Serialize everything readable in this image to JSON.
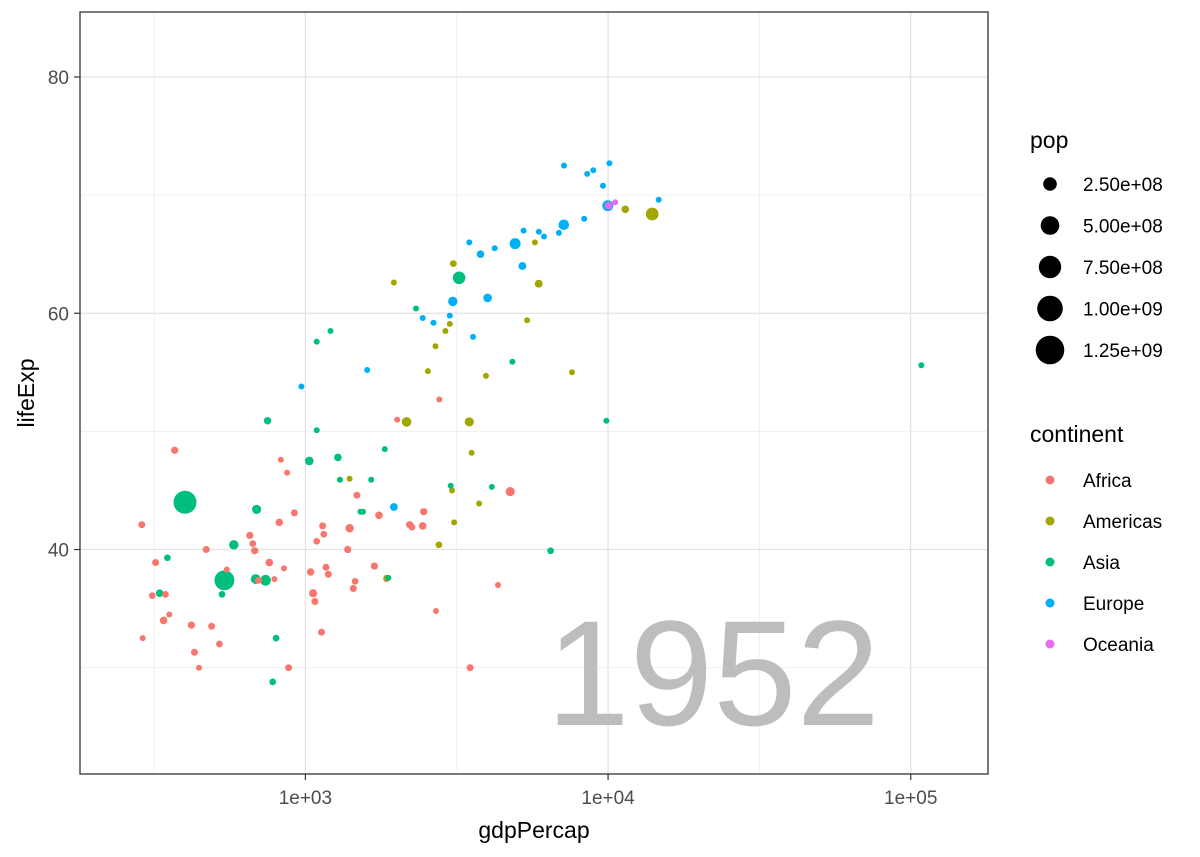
{
  "chart_data": {
    "type": "scatter",
    "xlabel": "gdpPercap",
    "ylabel": "lifeExp",
    "x_scale": "log10",
    "xlim": [
      180,
      180000
    ],
    "ylim": [
      21,
      85.5
    ],
    "x_ticks": [
      {
        "value": 1000,
        "label": "1e+03"
      },
      {
        "value": 10000,
        "label": "1e+04"
      },
      {
        "value": 100000,
        "label": "1e+05"
      }
    ],
    "x_minor_ticks": [
      316,
      3162,
      31623
    ],
    "y_ticks": [
      {
        "value": 40,
        "label": "40"
      },
      {
        "value": 60,
        "label": "60"
      },
      {
        "value": 80,
        "label": "80"
      }
    ],
    "y_minor_ticks": [
      30,
      50,
      70
    ],
    "grid": true,
    "annotation": "1952",
    "legend_position": "right",
    "size_legend": {
      "title": "pop",
      "entries": [
        {
          "value": 250000000,
          "label": "2.50e+08"
        },
        {
          "value": 500000000,
          "label": "5.00e+08"
        },
        {
          "value": 750000000,
          "label": "7.50e+08"
        },
        {
          "value": 1000000000,
          "label": "1.00e+09"
        },
        {
          "value": 1250000000,
          "label": "1.25e+09"
        }
      ]
    },
    "color_legend": {
      "title": "continent",
      "entries": [
        {
          "name": "Africa",
          "color": "#F8766D"
        },
        {
          "name": "Americas",
          "color": "#A3A500"
        },
        {
          "name": "Asia",
          "color": "#00BF7D"
        },
        {
          "name": "Europe",
          "color": "#00B0F6"
        },
        {
          "name": "Oceania",
          "color": "#E76BF3"
        }
      ]
    },
    "series": [
      {
        "name": "Africa",
        "color": "#F8766D",
        "points": [
          {
            "x": 288,
            "y": 42.1,
            "pop": 5000000
          },
          {
            "x": 290,
            "y": 32.5,
            "pop": 3000000
          },
          {
            "x": 312,
            "y": 36.1,
            "pop": 4000000
          },
          {
            "x": 320,
            "y": 38.9,
            "pop": 5000000
          },
          {
            "x": 340,
            "y": 34.0,
            "pop": 8000000
          },
          {
            "x": 345,
            "y": 36.2,
            "pop": 4000000
          },
          {
            "x": 355,
            "y": 34.5,
            "pop": 3000000
          },
          {
            "x": 370,
            "y": 48.4,
            "pop": 6000000
          },
          {
            "x": 420,
            "y": 33.6,
            "pop": 6000000
          },
          {
            "x": 430,
            "y": 31.3,
            "pop": 5000000
          },
          {
            "x": 445,
            "y": 30.0,
            "pop": 3000000
          },
          {
            "x": 470,
            "y": 40.0,
            "pop": 5000000
          },
          {
            "x": 490,
            "y": 33.5,
            "pop": 5000000
          },
          {
            "x": 520,
            "y": 32.0,
            "pop": 4000000
          },
          {
            "x": 550,
            "y": 38.3,
            "pop": 3000000
          },
          {
            "x": 655,
            "y": 41.2,
            "pop": 6000000
          },
          {
            "x": 670,
            "y": 40.5,
            "pop": 4000000
          },
          {
            "x": 680,
            "y": 39.9,
            "pop": 6000000
          },
          {
            "x": 700,
            "y": 37.4,
            "pop": 5000000
          },
          {
            "x": 760,
            "y": 38.9,
            "pop": 8000000
          },
          {
            "x": 790,
            "y": 37.5,
            "pop": 3000000
          },
          {
            "x": 820,
            "y": 42.3,
            "pop": 7000000
          },
          {
            "x": 830,
            "y": 47.6,
            "pop": 3000000
          },
          {
            "x": 850,
            "y": 38.4,
            "pop": 3000000
          },
          {
            "x": 870,
            "y": 46.5,
            "pop": 3000000
          },
          {
            "x": 880,
            "y": 30.0,
            "pop": 5000000
          },
          {
            "x": 920,
            "y": 43.1,
            "pop": 5000000
          },
          {
            "x": 1040,
            "y": 38.1,
            "pop": 7000000
          },
          {
            "x": 1060,
            "y": 36.3,
            "pop": 12000000
          },
          {
            "x": 1075,
            "y": 35.6,
            "pop": 5000000
          },
          {
            "x": 1090,
            "y": 40.7,
            "pop": 4000000
          },
          {
            "x": 1130,
            "y": 33.0,
            "pop": 5000000
          },
          {
            "x": 1140,
            "y": 42.0,
            "pop": 5000000
          },
          {
            "x": 1150,
            "y": 41.3,
            "pop": 4000000
          },
          {
            "x": 1170,
            "y": 38.5,
            "pop": 5000000
          },
          {
            "x": 1190,
            "y": 37.9,
            "pop": 5000000
          },
          {
            "x": 1380,
            "y": 40.0,
            "pop": 6000000
          },
          {
            "x": 1400,
            "y": 41.8,
            "pop": 15000000
          },
          {
            "x": 1440,
            "y": 36.7,
            "pop": 5000000
          },
          {
            "x": 1460,
            "y": 37.3,
            "pop": 4000000
          },
          {
            "x": 1480,
            "y": 44.6,
            "pop": 5000000
          },
          {
            "x": 1690,
            "y": 38.6,
            "pop": 6000000
          },
          {
            "x": 1750,
            "y": 42.9,
            "pop": 8000000
          },
          {
            "x": 1850,
            "y": 37.5,
            "pop": 3000000
          },
          {
            "x": 2010,
            "y": 51.0,
            "pop": 3000000
          },
          {
            "x": 2210,
            "y": 42.1,
            "pop": 6000000
          },
          {
            "x": 2250,
            "y": 41.9,
            "pop": 4000000
          },
          {
            "x": 2440,
            "y": 42.0,
            "pop": 8000000
          },
          {
            "x": 2460,
            "y": 43.2,
            "pop": 6000000
          },
          {
            "x": 2700,
            "y": 34.8,
            "pop": 3000000
          },
          {
            "x": 2770,
            "y": 52.7,
            "pop": 3000000
          },
          {
            "x": 3500,
            "y": 30.0,
            "pop": 5000000
          },
          {
            "x": 4330,
            "y": 37.0,
            "pop": 3000000
          },
          {
            "x": 4750,
            "y": 44.9,
            "pop": 22000000
          }
        ]
      },
      {
        "name": "Americas",
        "color": "#A3A500",
        "points": [
          {
            "x": 1400,
            "y": 46.0,
            "pop": 3000000
          },
          {
            "x": 1850,
            "y": 37.6,
            "pop": 3000000
          },
          {
            "x": 1960,
            "y": 62.6,
            "pop": 3000000
          },
          {
            "x": 2160,
            "y": 50.8,
            "pop": 28000000
          },
          {
            "x": 2540,
            "y": 55.1,
            "pop": 3000000
          },
          {
            "x": 2690,
            "y": 57.2,
            "pop": 3000000
          },
          {
            "x": 2760,
            "y": 40.4,
            "pop": 4000000
          },
          {
            "x": 2900,
            "y": 58.5,
            "pop": 3000000
          },
          {
            "x": 3000,
            "y": 59.1,
            "pop": 3000000
          },
          {
            "x": 3080,
            "y": 64.2,
            "pop": 4000000
          },
          {
            "x": 3100,
            "y": 42.3,
            "pop": 3000000
          },
          {
            "x": 3050,
            "y": 45.0,
            "pop": 3000000
          },
          {
            "x": 3480,
            "y": 50.8,
            "pop": 22000000
          },
          {
            "x": 3540,
            "y": 48.2,
            "pop": 3000000
          },
          {
            "x": 3750,
            "y": 43.9,
            "pop": 3000000
          },
          {
            "x": 3950,
            "y": 54.7,
            "pop": 3000000
          },
          {
            "x": 5400,
            "y": 59.4,
            "pop": 3000000
          },
          {
            "x": 5730,
            "y": 66.0,
            "pop": 3000000
          },
          {
            "x": 5900,
            "y": 62.5,
            "pop": 10000000
          },
          {
            "x": 7600,
            "y": 55.0,
            "pop": 3000000
          },
          {
            "x": 11400,
            "y": 68.8,
            "pop": 8000000
          },
          {
            "x": 13990,
            "y": 68.4,
            "pop": 90000000
          }
        ]
      },
      {
        "name": "Asia",
        "color": "#00BF7D",
        "points": [
          {
            "x": 330,
            "y": 36.3,
            "pop": 8000000
          },
          {
            "x": 350,
            "y": 39.3,
            "pop": 4000000
          },
          {
            "x": 400,
            "y": 44.0,
            "pop": 556000000
          },
          {
            "x": 530,
            "y": 36.2,
            "pop": 4000000
          },
          {
            "x": 540,
            "y": 37.4,
            "pop": 372000000
          },
          {
            "x": 580,
            "y": 40.4,
            "pop": 26000000
          },
          {
            "x": 685,
            "y": 37.5,
            "pop": 30000000
          },
          {
            "x": 690,
            "y": 43.4,
            "pop": 22000000
          },
          {
            "x": 738,
            "y": 37.4,
            "pop": 46000000
          },
          {
            "x": 750,
            "y": 50.9,
            "pop": 7000000
          },
          {
            "x": 780,
            "y": 28.8,
            "pop": 4000000
          },
          {
            "x": 800,
            "y": 32.5,
            "pop": 4000000
          },
          {
            "x": 1030,
            "y": 47.5,
            "pop": 16000000
          },
          {
            "x": 1090,
            "y": 50.1,
            "pop": 3000000
          },
          {
            "x": 1090,
            "y": 57.6,
            "pop": 3000000
          },
          {
            "x": 1210,
            "y": 58.5,
            "pop": 3000000
          },
          {
            "x": 1280,
            "y": 47.8,
            "pop": 8000000
          },
          {
            "x": 1300,
            "y": 45.9,
            "pop": 3000000
          },
          {
            "x": 1520,
            "y": 43.2,
            "pop": 3000000
          },
          {
            "x": 1550,
            "y": 43.2,
            "pop": 3000000
          },
          {
            "x": 1650,
            "y": 45.9,
            "pop": 3000000
          },
          {
            "x": 1830,
            "y": 48.5,
            "pop": 3000000
          },
          {
            "x": 1880,
            "y": 37.6,
            "pop": 3000000
          },
          {
            "x": 2320,
            "y": 60.4,
            "pop": 3000000
          },
          {
            "x": 3020,
            "y": 45.4,
            "pop": 3000000
          },
          {
            "x": 3220,
            "y": 63.0,
            "pop": 86000000
          },
          {
            "x": 4130,
            "y": 45.3,
            "pop": 3000000
          },
          {
            "x": 4830,
            "y": 55.9,
            "pop": 3000000
          },
          {
            "x": 6460,
            "y": 39.9,
            "pop": 4000000
          },
          {
            "x": 9870,
            "y": 50.9,
            "pop": 3000000
          },
          {
            "x": 108380,
            "y": 55.6,
            "pop": 3000000
          }
        ]
      },
      {
        "name": "Europe",
        "color": "#00B0F6",
        "points": [
          {
            "x": 970,
            "y": 53.8,
            "pop": 3000000
          },
          {
            "x": 1600,
            "y": 55.2,
            "pop": 3000000
          },
          {
            "x": 1960,
            "y": 43.6,
            "pop": 9000000
          },
          {
            "x": 2440,
            "y": 59.6,
            "pop": 3000000
          },
          {
            "x": 2650,
            "y": 59.2,
            "pop": 3000000
          },
          {
            "x": 3000,
            "y": 59.8,
            "pop": 3000000
          },
          {
            "x": 3070,
            "y": 61.0,
            "pop": 25000000
          },
          {
            "x": 3480,
            "y": 66.0,
            "pop": 3000000
          },
          {
            "x": 3580,
            "y": 58.0,
            "pop": 3000000
          },
          {
            "x": 3790,
            "y": 65.0,
            "pop": 8000000
          },
          {
            "x": 4000,
            "y": 61.3,
            "pop": 16000000
          },
          {
            "x": 4220,
            "y": 65.5,
            "pop": 3000000
          },
          {
            "x": 4930,
            "y": 65.9,
            "pop": 50000000
          },
          {
            "x": 5210,
            "y": 64.0,
            "pop": 10000000
          },
          {
            "x": 5260,
            "y": 67.0,
            "pop": 3000000
          },
          {
            "x": 5910,
            "y": 66.9,
            "pop": 3000000
          },
          {
            "x": 6140,
            "y": 66.5,
            "pop": 3000000
          },
          {
            "x": 6880,
            "y": 66.8,
            "pop": 3000000
          },
          {
            "x": 7030,
            "y": 67.4,
            "pop": 3000000
          },
          {
            "x": 7140,
            "y": 67.5,
            "pop": 42000000
          },
          {
            "x": 7150,
            "y": 72.5,
            "pop": 3000000
          },
          {
            "x": 8340,
            "y": 68.0,
            "pop": 3000000
          },
          {
            "x": 8530,
            "y": 71.8,
            "pop": 3000000
          },
          {
            "x": 8940,
            "y": 72.1,
            "pop": 3000000
          },
          {
            "x": 9620,
            "y": 70.8,
            "pop": 3000000
          },
          {
            "x": 9980,
            "y": 69.1,
            "pop": 50000000
          },
          {
            "x": 10100,
            "y": 72.7,
            "pop": 3000000
          },
          {
            "x": 14700,
            "y": 69.6,
            "pop": 3000000
          }
        ]
      },
      {
        "name": "Oceania",
        "color": "#E76BF3",
        "points": [
          {
            "x": 10040,
            "y": 69.1,
            "pop": 8700000
          },
          {
            "x": 10560,
            "y": 69.4,
            "pop": 3000000
          }
        ]
      }
    ]
  }
}
